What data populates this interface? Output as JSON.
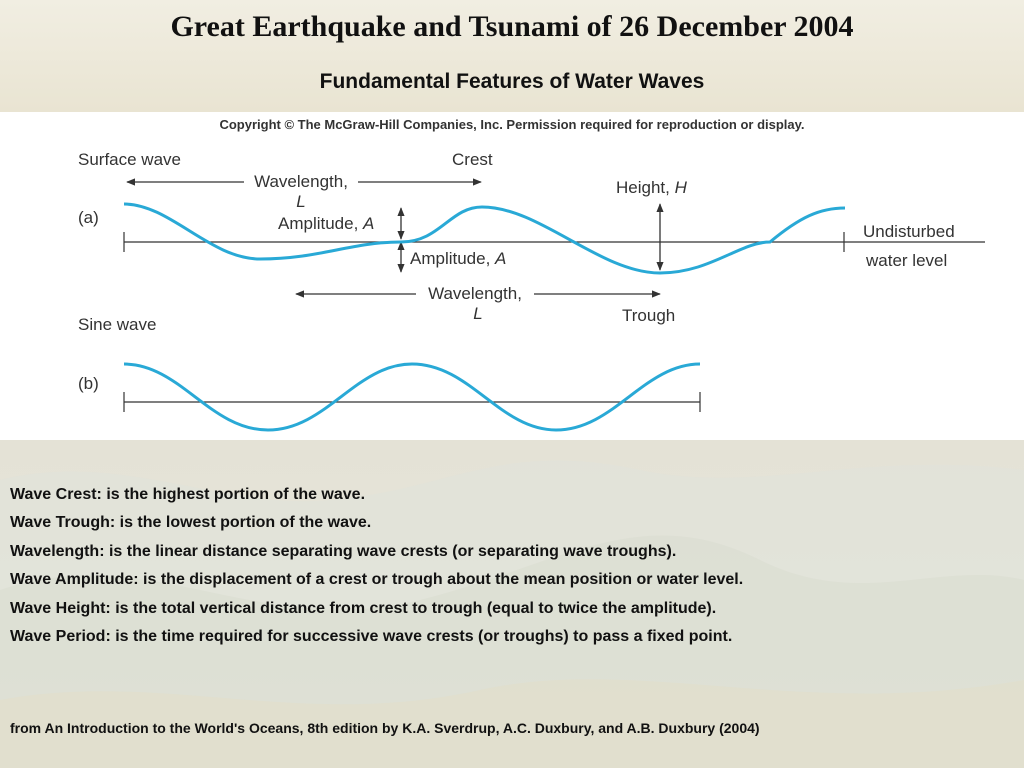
{
  "slide": {
    "title": "Great Earthquake and Tsunami of 26 December 2004",
    "subtitle": "Fundamental Features of Water Waves"
  },
  "figure": {
    "copyright": "Copyright © The McGraw-Hill Companies, Inc. Permission required for reproduction or display.",
    "panel_a_heading": "Surface wave",
    "panel_a_letter": "(a)",
    "crest_label": "Crest",
    "wavelength_label_top": "Wavelength,",
    "wavelength_symbol_top": "L",
    "amplitude_upper_label": "Amplitude, ",
    "amplitude_upper_symbol": "A",
    "amplitude_lower_label": "Amplitude, ",
    "amplitude_lower_symbol": "A",
    "height_label": "Height, ",
    "height_symbol": "H",
    "undisturbed_line1": "Undisturbed",
    "undisturbed_line2": "water level",
    "wavelength_label_bottom": "Wavelength,",
    "wavelength_symbol_bottom": "L",
    "trough_label": "Trough",
    "panel_b_heading": "Sine wave",
    "panel_b_letter": "(b)",
    "wave_color": "#29a9d6"
  },
  "definitions": [
    "Wave Crest: is the highest portion of the wave.",
    "Wave Trough: is the lowest portion of the wave.",
    "Wavelength: is the linear distance separating wave crests (or separating wave troughs).",
    "Wave Amplitude: is the displacement of a crest or trough about the mean position or water level.",
    "Wave Height: is the total vertical distance from crest to trough (equal to twice the amplitude).",
    "Wave Period: is the time required for successive wave crests (or troughs) to pass a fixed point."
  ],
  "source": "from An Introduction to the World's Oceans, 8th edition by K.A. Sverdrup, A.C. Duxbury, and A.B. Duxbury (2004)"
}
